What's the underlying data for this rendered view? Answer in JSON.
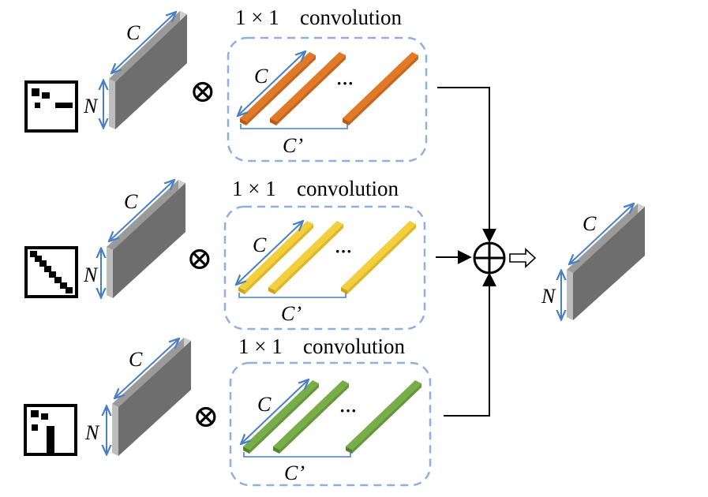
{
  "title_prefix": "1 × 1",
  "title_word": "convolution",
  "dim_c": "C",
  "dim_n": "N",
  "dim_c_prime": "C’",
  "ellipsis": "···",
  "op_multiply": "⊗",
  "op_add": "⊕",
  "arrow_glyph": "⇨",
  "branches": [
    {
      "id": "branch-1",
      "filter_color": "#e07a28",
      "filter_dark": "#b85a14",
      "matrix": "sparse-matrix-icon"
    },
    {
      "id": "branch-2",
      "filter_color": "#f3cf3e",
      "filter_dark": "#c9a41c",
      "matrix": "diagonal-matrix-icon"
    },
    {
      "id": "branch-3",
      "filter_color": "#79ad4a",
      "filter_dark": "#567f2e",
      "matrix": "block-matrix-icon"
    }
  ],
  "colors": {
    "dimension_arrow": "#4a7fc6",
    "dashed_box": "#8fb0dd",
    "tensor_front": "#6e6e6e",
    "tensor_side": "#cfcfcf",
    "tensor_top": "#9a9a9a"
  }
}
